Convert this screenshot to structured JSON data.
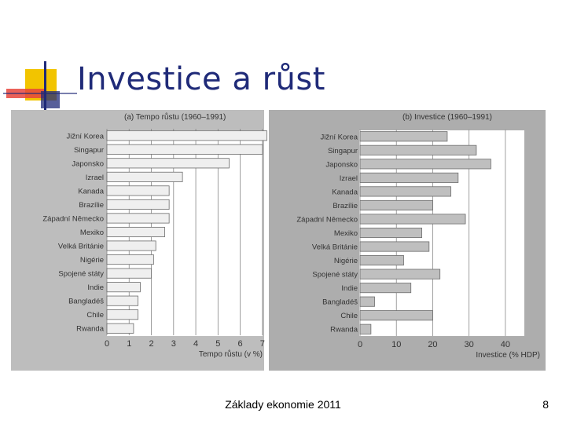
{
  "slide": {
    "title": "Investice a růst",
    "footer": "Základy ekonomie 2011",
    "page_number": "8"
  },
  "colors": {
    "title": "#1f2a78",
    "panel_a_bg": "#bdbdbd",
    "panel_b_bg": "#adadad",
    "plot_bg": "#ffffff",
    "bar_a": "#efefef",
    "bar_b": "#bfbfbf",
    "bar_stroke": "#6b6b6b",
    "logo_yellow": "#f2c400",
    "logo_red": "#e8453c",
    "logo_blue": "#1f2a78"
  },
  "chart_data": [
    {
      "type": "bar",
      "orientation": "horizontal",
      "title": "(a) Tempo růstu (1960–1991)",
      "xlabel": "Tempo růstu (v %)",
      "xlim": [
        0,
        7.5
      ],
      "xticks": [
        0,
        1,
        2,
        3,
        4,
        5,
        6,
        7
      ],
      "grid": true,
      "categories": [
        "Jižní Korea",
        "Singapur",
        "Japonsko",
        "Izrael",
        "Kanada",
        "Brazílie",
        "Západní Německo",
        "Mexiko",
        "Velká Británie",
        "Nigérie",
        "Spojené státy",
        "Indie",
        "Bangladéš",
        "Chile",
        "Rwanda"
      ],
      "values": [
        7.2,
        7.0,
        5.5,
        3.4,
        2.8,
        2.8,
        2.8,
        2.6,
        2.2,
        2.1,
        2.0,
        1.5,
        1.4,
        1.4,
        1.2
      ]
    },
    {
      "type": "bar",
      "orientation": "horizontal",
      "title": "(b) Investice (1960–1991)",
      "xlabel": "Investice (% HDP)",
      "xlim": [
        0,
        45
      ],
      "xticks": [
        0,
        10,
        20,
        30,
        40
      ],
      "grid": true,
      "categories": [
        "Jižní Korea",
        "Singapur",
        "Japonsko",
        "Izrael",
        "Kanada",
        "Brazílie",
        "Západní Německo",
        "Mexiko",
        "Velká Británie",
        "Nigérie",
        "Spojené státy",
        "Indie",
        "Bangladéš",
        "Chile",
        "Rwanda"
      ],
      "values": [
        24,
        32,
        36,
        27,
        25,
        20,
        29,
        17,
        19,
        12,
        22,
        14,
        4,
        20,
        3
      ]
    }
  ]
}
